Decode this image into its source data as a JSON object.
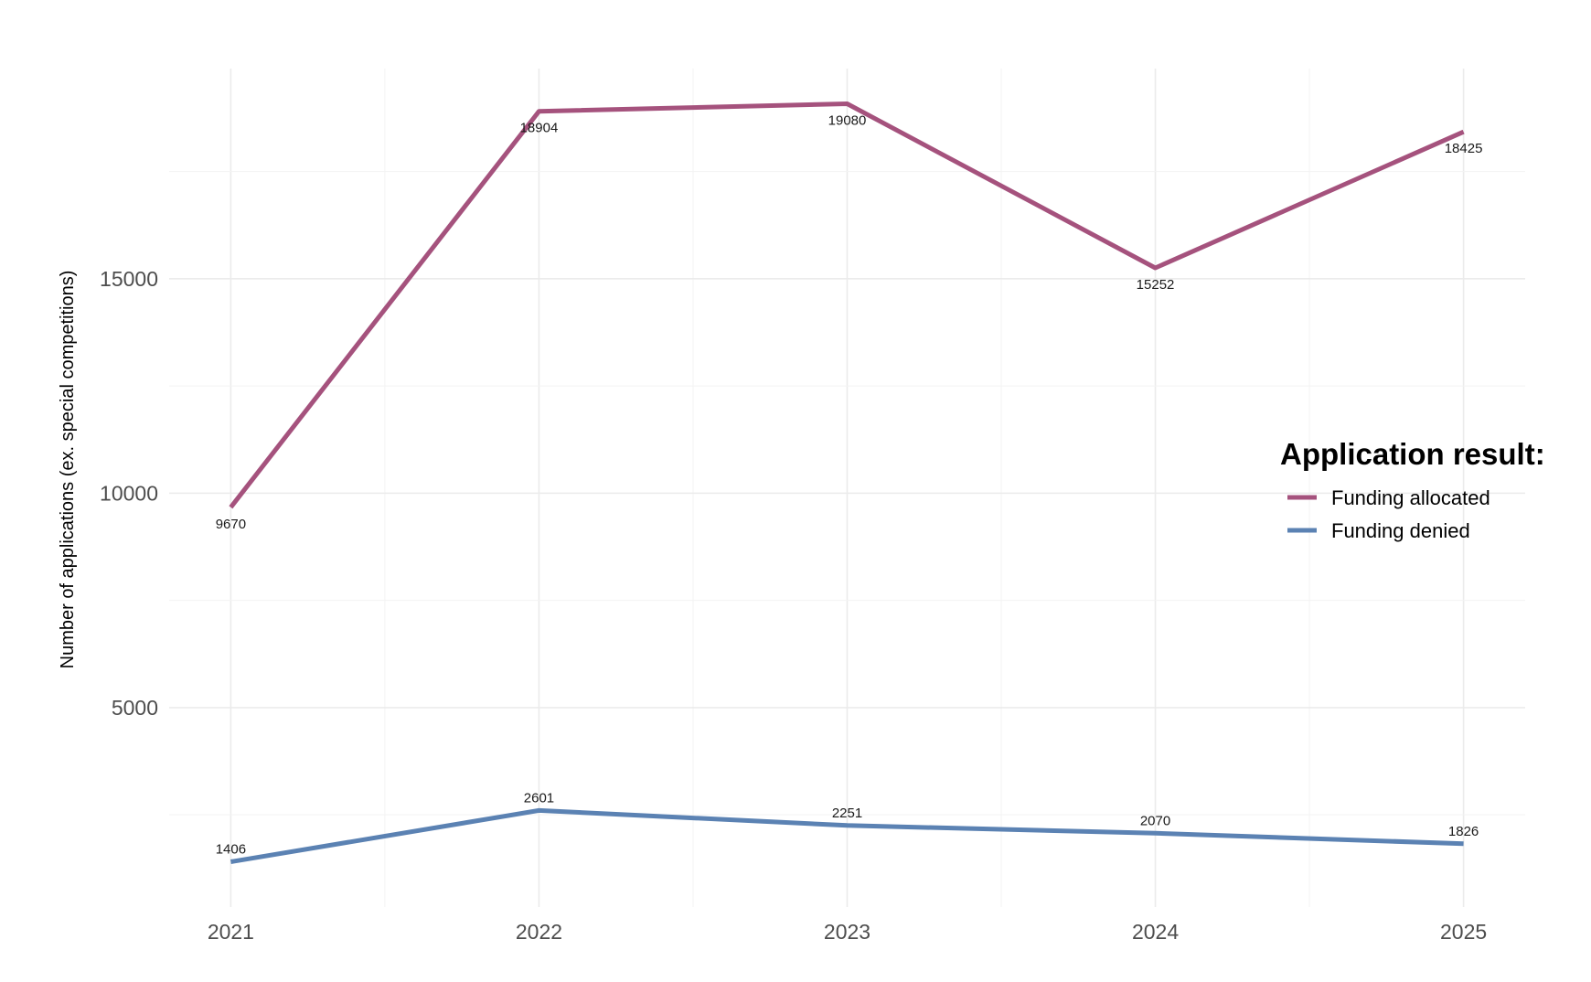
{
  "chart_data": {
    "type": "line",
    "x": [
      2021,
      2022,
      2023,
      2024,
      2025
    ],
    "x_tick_labels": [
      "2021",
      "2022",
      "2023",
      "2024",
      "2025"
    ],
    "y_ticks": [
      5000,
      10000,
      15000
    ],
    "y_tick_labels": [
      "5000",
      "10000",
      "15000"
    ],
    "ylim": [
      350,
      19900
    ],
    "xlim": [
      2020.8,
      2025.2
    ],
    "xlabel": "",
    "ylabel": "Number of applications (ex. special competitions)",
    "grid": true,
    "legend": {
      "title": "Application result:",
      "position": "right"
    },
    "series": [
      {
        "name": "Funding allocated",
        "color": "#A5527D",
        "values": [
          9670,
          18904,
          19080,
          15252,
          18425
        ],
        "labels": [
          "9670",
          "18904",
          "19080",
          "15252",
          "18425"
        ]
      },
      {
        "name": "Funding denied",
        "color": "#5B82B3",
        "values": [
          1406,
          2601,
          2251,
          2070,
          1826
        ],
        "labels": [
          "1406",
          "2601",
          "2251",
          "2070",
          "1826"
        ]
      }
    ]
  }
}
